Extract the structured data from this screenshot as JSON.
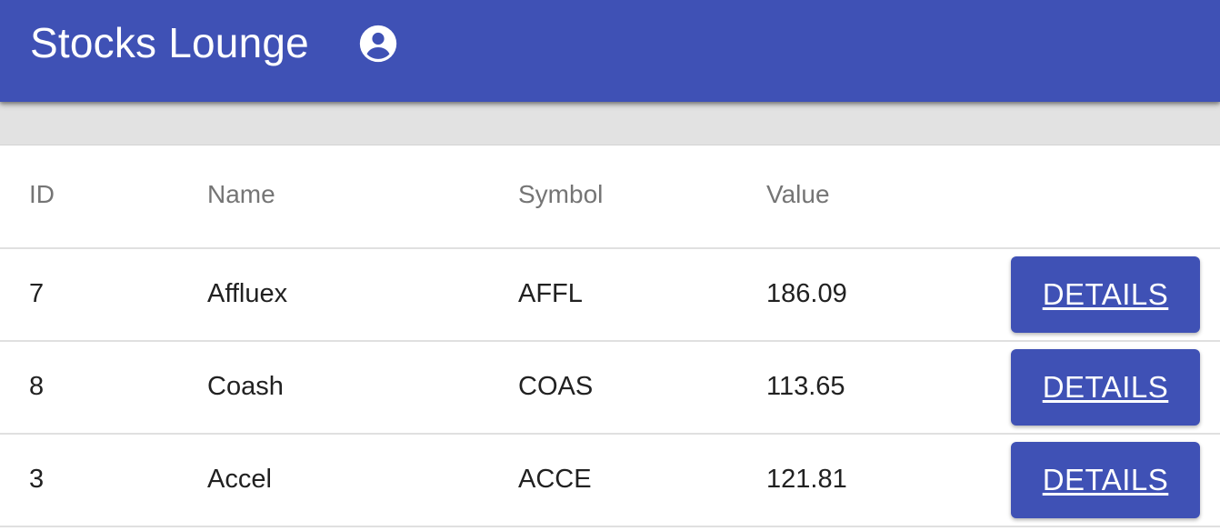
{
  "app": {
    "title": "Stocks Lounge",
    "account_icon": "account-circle-icon",
    "brand_color": "#3f51b5"
  },
  "table": {
    "columns": [
      "ID",
      "Name",
      "Symbol",
      "Value"
    ],
    "rows": [
      {
        "id": "7",
        "name": "Affluex",
        "symbol": "AFFL",
        "value": "186.09",
        "action": "DETAILS"
      },
      {
        "id": "8",
        "name": "Coash",
        "symbol": "COAS",
        "value": "113.65",
        "action": "DETAILS"
      },
      {
        "id": "3",
        "name": "Accel",
        "symbol": "ACCE",
        "value": "121.81",
        "action": "DETAILS"
      }
    ]
  }
}
